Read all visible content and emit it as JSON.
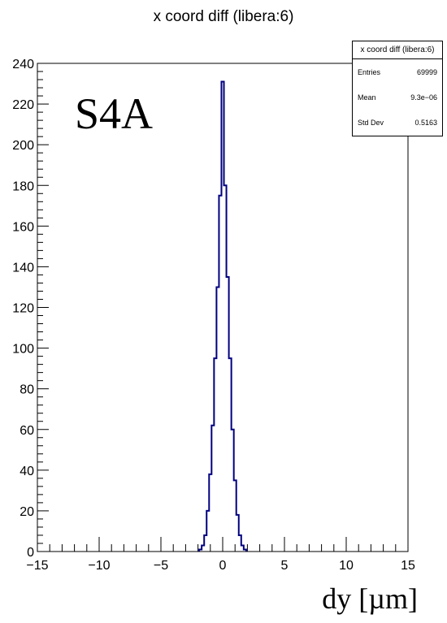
{
  "chart_data": {
    "type": "histogram",
    "title": "x coord diff (libera:6)",
    "xlabel": "dy [µm]",
    "ylabel": "",
    "annotation": "S4A",
    "xlim": [
      -15,
      15
    ],
    "ylim": [
      0,
      240
    ],
    "x_ticks": [
      -15,
      -10,
      -5,
      0,
      5,
      10,
      15
    ],
    "x_tick_labels": [
      "−15",
      "−10",
      "−5",
      "0",
      "5",
      "10",
      "15"
    ],
    "y_ticks": [
      0,
      20,
      40,
      60,
      80,
      100,
      120,
      140,
      160,
      180,
      200,
      220,
      240
    ],
    "y_tick_labels": [
      "0",
      "20",
      "40",
      "60",
      "80",
      "100",
      "120",
      "140",
      "160",
      "180",
      "200",
      "220",
      "240"
    ],
    "bin_centers": [
      -1.8,
      -1.6,
      -1.4,
      -1.2,
      -1.0,
      -0.8,
      -0.6,
      -0.4,
      -0.2,
      0.0,
      0.2,
      0.4,
      0.6,
      0.8,
      1.0,
      1.2,
      1.4,
      1.6,
      1.8
    ],
    "counts": [
      1,
      3,
      8,
      20,
      38,
      62,
      95,
      130,
      175,
      231,
      180,
      135,
      95,
      60,
      35,
      18,
      8,
      3,
      1
    ],
    "line_color": "#000080",
    "stats": {
      "title": "x coord diff (libera:6)",
      "rows": [
        {
          "label": "Entries",
          "value": "69999"
        },
        {
          "label": "Mean",
          "value": "9.3e−06"
        },
        {
          "label": "Std Dev",
          "value": "0.5163"
        }
      ]
    }
  }
}
